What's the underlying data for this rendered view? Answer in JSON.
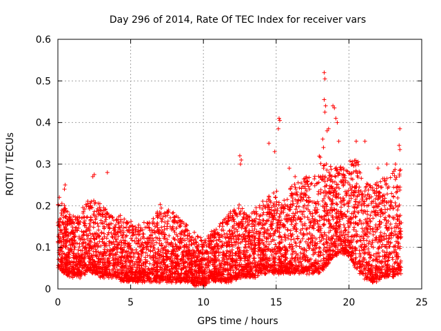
{
  "chart_data": {
    "type": "scatter",
    "title": "Day 296 of 2014, Rate Of TEC Index for receiver vars",
    "xlabel": "GPS time / hours",
    "ylabel": "ROTI / TECUs",
    "xlim": [
      0,
      25
    ],
    "ylim": [
      0,
      0.6
    ],
    "x_ticks": [
      0,
      5,
      10,
      15,
      20,
      25
    ],
    "x_tick_labels": [
      "0",
      "5",
      "10",
      "15",
      "20",
      "25"
    ],
    "y_ticks": [
      0,
      0.1,
      0.2,
      0.3,
      0.4,
      0.5,
      0.6
    ],
    "y_tick_labels": [
      "0",
      "0.1",
      "0.2",
      "0.3",
      "0.4",
      "0.5",
      "0.6"
    ],
    "grid": true,
    "marker": "+",
    "marker_color": "#ff0000",
    "series": [
      {
        "name": "ROTI",
        "envelope_x": [
          0,
          0.5,
          1,
          1.5,
          2,
          2.5,
          3,
          3.5,
          4,
          4.5,
          5,
          5.5,
          6,
          6.5,
          7,
          7.5,
          8,
          8.5,
          9,
          9.5,
          10,
          10.5,
          11,
          11.5,
          12,
          12.5,
          13,
          13.5,
          14,
          14.5,
          15,
          15.5,
          16,
          16.5,
          17,
          17.5,
          18,
          18.5,
          19,
          19.5,
          20,
          20.5,
          21,
          21.5,
          22,
          22.5,
          23,
          23.5
        ],
        "envelope_upper": [
          0.21,
          0.2,
          0.17,
          0.18,
          0.21,
          0.22,
          0.2,
          0.19,
          0.17,
          0.18,
          0.16,
          0.15,
          0.16,
          0.17,
          0.2,
          0.19,
          0.18,
          0.17,
          0.15,
          0.13,
          0.12,
          0.14,
          0.15,
          0.17,
          0.19,
          0.2,
          0.18,
          0.19,
          0.21,
          0.23,
          0.24,
          0.22,
          0.25,
          0.26,
          0.27,
          0.26,
          0.33,
          0.31,
          0.3,
          0.29,
          0.3,
          0.32,
          0.27,
          0.25,
          0.26,
          0.27,
          0.28,
          0.3
        ],
        "envelope_base": [
          0.05,
          0.04,
          0.03,
          0.03,
          0.04,
          0.04,
          0.03,
          0.03,
          0.03,
          0.02,
          0.02,
          0.02,
          0.02,
          0.02,
          0.02,
          0.02,
          0.02,
          0.02,
          0.02,
          0.01,
          0.01,
          0.02,
          0.02,
          0.02,
          0.02,
          0.03,
          0.03,
          0.03,
          0.04,
          0.04,
          0.04,
          0.04,
          0.04,
          0.04,
          0.04,
          0.04,
          0.04,
          0.06,
          0.08,
          0.09,
          0.08,
          0.05,
          0.03,
          0.02,
          0.02,
          0.03,
          0.03,
          0.04
        ],
        "outliers": [
          {
            "x": 0.1,
            "y": 0.22
          },
          {
            "x": 0.5,
            "y": 0.25
          },
          {
            "x": 0.45,
            "y": 0.24
          },
          {
            "x": 2.4,
            "y": 0.27
          },
          {
            "x": 2.5,
            "y": 0.275
          },
          {
            "x": 3.4,
            "y": 0.28
          },
          {
            "x": 12.5,
            "y": 0.32
          },
          {
            "x": 12.6,
            "y": 0.31
          },
          {
            "x": 12.55,
            "y": 0.3
          },
          {
            "x": 14.5,
            "y": 0.35
          },
          {
            "x": 14.9,
            "y": 0.33
          },
          {
            "x": 15.2,
            "y": 0.41
          },
          {
            "x": 15.25,
            "y": 0.405
          },
          {
            "x": 15.15,
            "y": 0.385
          },
          {
            "x": 15.9,
            "y": 0.29
          },
          {
            "x": 16.3,
            "y": 0.27
          },
          {
            "x": 18.3,
            "y": 0.52
          },
          {
            "x": 18.35,
            "y": 0.505
          },
          {
            "x": 18.3,
            "y": 0.455
          },
          {
            "x": 18.4,
            "y": 0.44
          },
          {
            "x": 18.35,
            "y": 0.425
          },
          {
            "x": 18.5,
            "y": 0.38
          },
          {
            "x": 18.6,
            "y": 0.385
          },
          {
            "x": 18.9,
            "y": 0.44
          },
          {
            "x": 19.0,
            "y": 0.435
          },
          {
            "x": 19.1,
            "y": 0.41
          },
          {
            "x": 19.2,
            "y": 0.4
          },
          {
            "x": 18.2,
            "y": 0.36
          },
          {
            "x": 18.25,
            "y": 0.34
          },
          {
            "x": 19.3,
            "y": 0.355
          },
          {
            "x": 20.5,
            "y": 0.355
          },
          {
            "x": 21.1,
            "y": 0.355
          },
          {
            "x": 23.5,
            "y": 0.385
          },
          {
            "x": 23.45,
            "y": 0.345
          },
          {
            "x": 23.5,
            "y": 0.335
          },
          {
            "x": 22.6,
            "y": 0.3
          },
          {
            "x": 22.0,
            "y": 0.29
          },
          {
            "x": 23.2,
            "y": 0.3
          }
        ]
      }
    ]
  }
}
